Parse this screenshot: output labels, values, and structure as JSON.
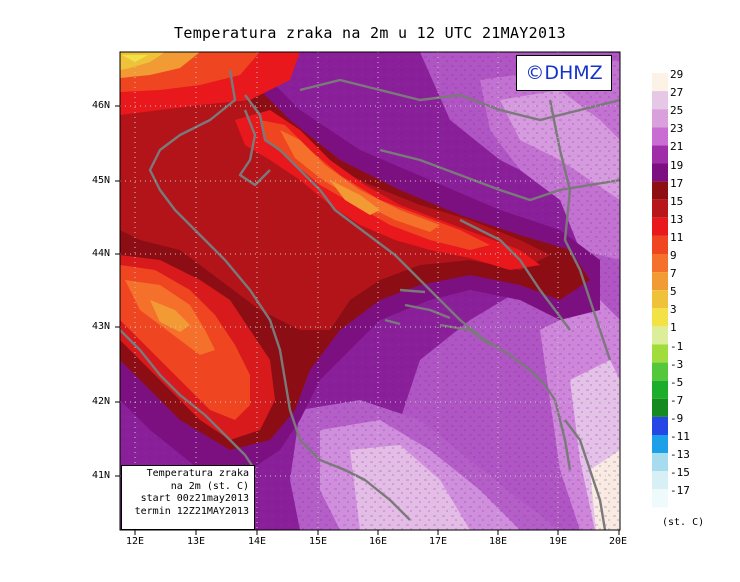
{
  "title": "Temperatura zraka na 2m u 12 UTC 21MAY2013",
  "copyright": "©DHMZ",
  "info_box": {
    "line1": "Temperatura zraka",
    "line2": "na 2m (st. C)",
    "line3": "start 00z21may2013",
    "line4": "termin 12Z21MAY2013"
  },
  "lat_labels": [
    "46N",
    "45N",
    "44N",
    "43N",
    "42N",
    "41N"
  ],
  "lon_labels": [
    "12E",
    "13E",
    "14E",
    "15E",
    "16E",
    "17E",
    "18E",
    "19E",
    "20E"
  ],
  "colorbar": {
    "labels": [
      "29",
      "27",
      "25",
      "23",
      "21",
      "19",
      "17",
      "15",
      "13",
      "11",
      "9",
      "7",
      "5",
      "3",
      "1",
      "-1",
      "-3",
      "-5",
      "-7",
      "-9",
      "-11",
      "-13",
      "-15",
      "-17"
    ],
    "colors": [
      "#fcf3e6",
      "#e6c8e6",
      "#d9a0dc",
      "#c96dd2",
      "#9f2ea8",
      "#7c1080",
      "#8e0f12",
      "#b8161a",
      "#e8181d",
      "#f04521",
      "#f5702a",
      "#f29b34",
      "#f0c23a",
      "#f2e245",
      "#dcee9a",
      "#9fdc3c",
      "#54c83a",
      "#1cae2a",
      "#148a20",
      "#2646e6",
      "#1ea0e8",
      "#a6dcee",
      "#d6f0f5",
      "#effafc"
    ],
    "unit": "(st. C)"
  },
  "colors": {
    "plot_base": "#8a1f9a",
    "coastline": "#7a7a7a"
  }
}
